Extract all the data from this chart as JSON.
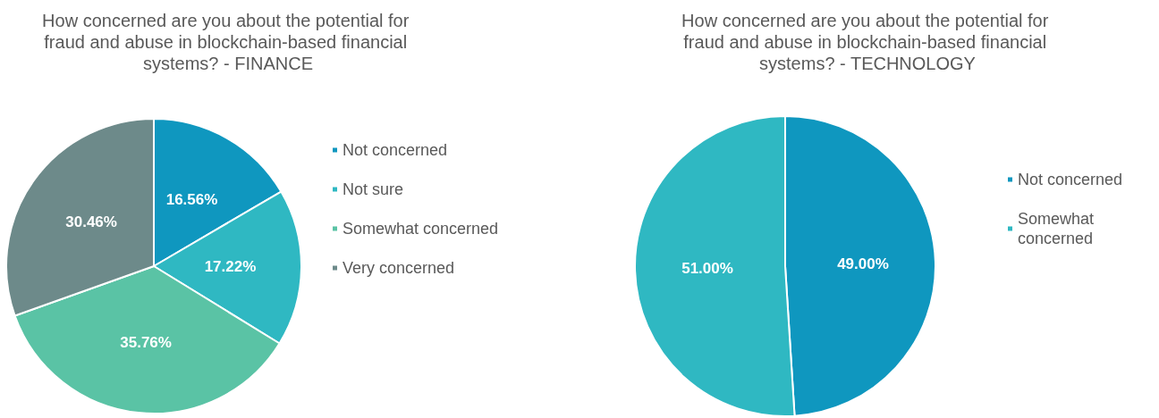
{
  "chart_data": [
    {
      "type": "pie",
      "title": "How concerned are you about the potential for fraud and abuse in blockchain-based financial systems? - FINANCE",
      "categories": [
        "Not concerned",
        "Not sure",
        "Somewhat concerned",
        "Very concerned"
      ],
      "values": [
        16.56,
        17.22,
        35.76,
        30.46
      ],
      "colors": [
        "#0f97bf",
        "#2fb8c2",
        "#5ac3a5",
        "#6d8a8a"
      ],
      "value_labels": [
        "16.56%",
        "17.22%",
        "35.76%",
        "30.46%"
      ],
      "legend": "right"
    },
    {
      "type": "pie",
      "title": "How concerned are you about the potential for fraud and abuse in blockchain-based financial systems? - TECHNOLOGY",
      "categories": [
        "Not concerned",
        "Somewhat concerned"
      ],
      "values": [
        49.0,
        51.0
      ],
      "colors": [
        "#0f97bf",
        "#2fb8c2"
      ],
      "value_labels": [
        "49.00%",
        "51.00%"
      ],
      "legend": "right"
    }
  ]
}
